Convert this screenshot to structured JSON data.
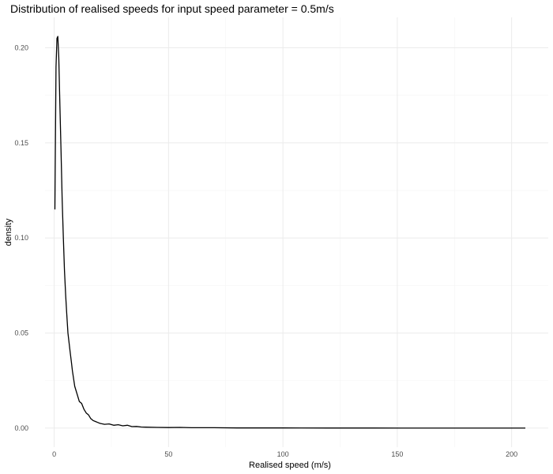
{
  "chart_data": {
    "type": "line",
    "title": "Distribution of realised speeds for input speed parameter = 0.5m/s",
    "xlabel": "Realised speed (m/s)",
    "ylabel": "density",
    "xlim": [
      -4,
      216
    ],
    "ylim": [
      -0.01,
      0.216
    ],
    "x_ticks": [
      0,
      50,
      100,
      150,
      200
    ],
    "x_tick_labels": [
      "0",
      "50",
      "100",
      "150",
      "200"
    ],
    "y_ticks": [
      0.0,
      0.05,
      0.1,
      0.15,
      0.2
    ],
    "y_tick_labels": [
      "0.00",
      "0.05",
      "0.10",
      "0.15",
      "0.20"
    ],
    "grid": true,
    "legend": "none",
    "colors": {
      "line": "#000000",
      "grid_major": "#ebebeb",
      "grid_minor": "#f4f4f4",
      "tick_text": "#4d4d4d"
    },
    "series": [
      {
        "x": [
          0.3,
          0.8,
          1.2,
          1.6,
          2.0,
          2.5,
          3.0,
          3.5,
          4.0,
          4.5,
          5.0,
          5.5,
          6.0,
          6.5,
          7.0,
          7.5,
          8.0,
          9.0,
          10.0,
          11.0,
          12.0,
          13.0,
          14.0,
          15.0,
          16.0,
          17.0,
          18.0,
          19.0,
          20.0,
          22.0,
          24.0,
          26.0,
          28.0,
          30.0,
          32.0,
          34.0,
          36.0,
          38.0,
          40.0,
          45.0,
          50.0,
          55.0,
          60.0,
          70.0,
          80.0,
          100.0,
          120.0,
          140.0,
          160.0,
          180.0,
          200.0,
          206.0
        ],
        "y": [
          0.115,
          0.19,
          0.205,
          0.206,
          0.195,
          0.17,
          0.145,
          0.12,
          0.1,
          0.083,
          0.07,
          0.06,
          0.05,
          0.045,
          0.04,
          0.035,
          0.03,
          0.022,
          0.018,
          0.014,
          0.013,
          0.01,
          0.008,
          0.007,
          0.005,
          0.004,
          0.0035,
          0.003,
          0.0025,
          0.002,
          0.0022,
          0.0015,
          0.0018,
          0.0012,
          0.0015,
          0.0008,
          0.0009,
          0.0006,
          0.0005,
          0.0004,
          0.0003,
          0.0004,
          0.0002,
          0.0002,
          0.0001,
          0.0001,
          5e-05,
          5e-05,
          3e-05,
          2e-05,
          1e-05,
          0.0
        ]
      }
    ]
  }
}
